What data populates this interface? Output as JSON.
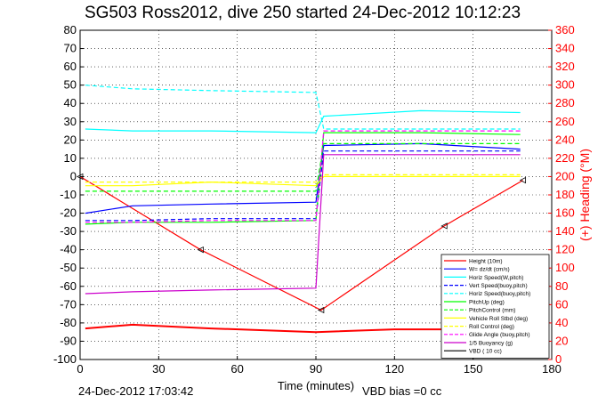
{
  "chart_data": {
    "type": "line",
    "title": "SG503 Ross2012, dive 250 started 24-Dec-2012 10:12:23",
    "xlabel": "Time (minutes)",
    "ylabel_right": "(+) Heading (°M)",
    "xlim": [
      0,
      180
    ],
    "ylim_left": [
      -100,
      80
    ],
    "ylim_right": [
      0,
      360
    ],
    "x_ticks": [
      0,
      30,
      60,
      90,
      120,
      150,
      180
    ],
    "y_ticks_left": [
      80,
      70,
      60,
      50,
      40,
      30,
      20,
      10,
      0,
      -10,
      -20,
      -30,
      -40,
      -50,
      -60,
      -70,
      -80,
      -90,
      -100
    ],
    "y_ticks_right": [
      360,
      340,
      320,
      300,
      280,
      260,
      240,
      220,
      200,
      180,
      160,
      140,
      120,
      100,
      80,
      60,
      40,
      20,
      0
    ],
    "grid": true,
    "legend_position": "bottom-right",
    "colors": {
      "left_axis": "#000000",
      "right_axis": "#ff0000"
    },
    "series": [
      {
        "name": "Height (10m)",
        "color": "#ff0000",
        "style": "solid",
        "x": [
          0,
          46,
          92,
          139,
          169
        ],
        "y": [
          0,
          -40,
          -73,
          -27,
          -2
        ],
        "markers": "triangles"
      },
      {
        "name": "W= dz/dt (cm/s)",
        "color": "#0000ff",
        "style": "solid",
        "x": [
          2,
          20,
          50,
          90,
          93,
          130,
          168
        ],
        "y": [
          -20,
          -16,
          -15,
          -14,
          17,
          18,
          15
        ]
      },
      {
        "name": "Horiz Speed(W,pitch)",
        "color": "#00ffff",
        "style": "solid",
        "x": [
          2,
          20,
          50,
          90,
          93,
          130,
          168
        ],
        "y": [
          26,
          25,
          25,
          24,
          33,
          36,
          35
        ]
      },
      {
        "name": "Vert Speed(buoy,pitch)",
        "color": "#0000ff",
        "style": "dashed",
        "x": [
          2,
          20,
          50,
          90,
          93,
          130,
          168
        ],
        "y": [
          -24,
          -24,
          -23,
          -23,
          14,
          14,
          14
        ]
      },
      {
        "name": "Horiz Speed(buoy,pitch)",
        "color": "#00ffff",
        "style": "dashed",
        "x": [
          2,
          20,
          50,
          90,
          93,
          130,
          168
        ],
        "y": [
          50,
          48,
          47,
          46,
          26,
          26,
          26
        ]
      },
      {
        "name": "PitchUp (deg)",
        "color": "#00ff00",
        "style": "solid",
        "x": [
          2,
          20,
          50,
          90,
          93,
          130,
          168
        ],
        "y": [
          -26,
          -25,
          -25,
          -24,
          24,
          24,
          23
        ]
      },
      {
        "name": "PitchControl (mm)",
        "color": "#00ff00",
        "style": "dashed",
        "x": [
          2,
          20,
          50,
          90,
          93,
          130,
          168
        ],
        "y": [
          -8,
          -8,
          -8,
          -8,
          18,
          18,
          18
        ]
      },
      {
        "name": "Vehicle Roll Stbd (deg)",
        "color": "#ffff00",
        "style": "solid",
        "x": [
          2,
          20,
          50,
          90,
          93,
          130,
          168
        ],
        "y": [
          -5,
          -5,
          -3,
          -5,
          0,
          0,
          0
        ]
      },
      {
        "name": "Roll Control (deg)",
        "color": "#ffff00",
        "style": "dashed",
        "x": [
          2,
          20,
          50,
          90,
          93,
          130,
          168
        ],
        "y": [
          -3,
          -3,
          -3,
          -3,
          1,
          1,
          1
        ]
      },
      {
        "name": "Glide Angle (buoy,pitch)",
        "color": "#ff00ff",
        "style": "dashed",
        "x": [
          2,
          20,
          50,
          90,
          93,
          130,
          168
        ],
        "y": [
          -25,
          -25,
          -24,
          -24,
          25,
          25,
          25
        ]
      },
      {
        "name": "1/5 Buoyancy (g)",
        "color": "#cc00cc",
        "style": "solid",
        "x": [
          2,
          20,
          50,
          90,
          93,
          130,
          168
        ],
        "y": [
          -64,
          -63,
          -62,
          -61,
          12,
          12,
          12
        ]
      },
      {
        "name": "VBD ( 10 cc)",
        "color": "#000000",
        "style": "solid",
        "x": [],
        "y": []
      },
      {
        "name": "Heading (°M)",
        "color": "#ff0000",
        "style": "solid",
        "axis": "right",
        "x": [
          2,
          20,
          50,
          90,
          120,
          150,
          168
        ],
        "y": [
          34,
          38,
          34,
          30,
          33,
          33,
          33
        ]
      }
    ]
  },
  "footer": {
    "timestamp": "24-Dec-2012 17:03:42",
    "vbd_bias": "VBD bias =0 cc"
  }
}
